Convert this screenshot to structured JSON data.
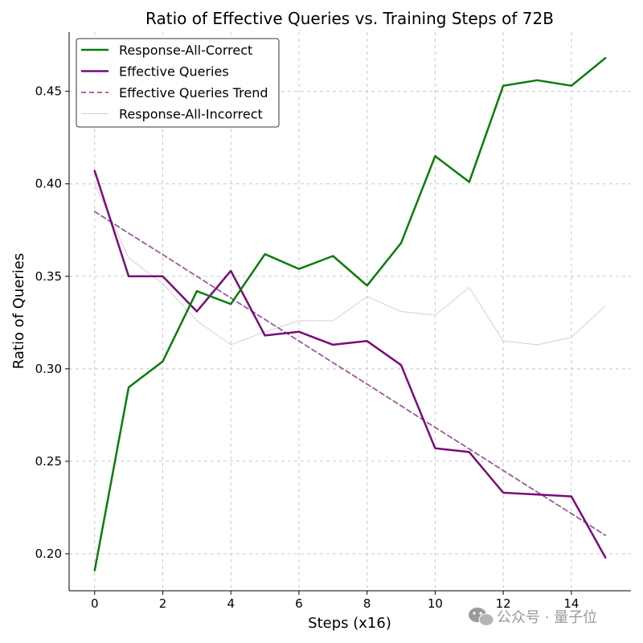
{
  "chart_data": {
    "type": "line",
    "title": "Ratio of Effective Queries vs. Training Steps of 72B",
    "xlabel": "Steps (x16)",
    "ylabel": "Ratio of Queries",
    "xlim": [
      -0.75,
      15.75
    ],
    "ylim": [
      0.18,
      0.482
    ],
    "xticks": [
      0,
      2,
      4,
      6,
      8,
      10,
      12,
      14
    ],
    "yticks": [
      0.2,
      0.25,
      0.3,
      0.35,
      0.4,
      0.45
    ],
    "grid": true,
    "legend_position": "top-left",
    "x": [
      0,
      1,
      2,
      3,
      4,
      5,
      6,
      7,
      8,
      9,
      10,
      11,
      12,
      13,
      14,
      15
    ],
    "series": [
      {
        "name": "Response-All-Correct",
        "color": "#0a7d0a",
        "style": "solid",
        "weight": "thick",
        "values": [
          0.191,
          0.29,
          0.304,
          0.342,
          0.335,
          0.362,
          0.354,
          0.361,
          0.345,
          0.368,
          0.415,
          0.401,
          0.453,
          0.456,
          0.453,
          0.468
        ]
      },
      {
        "name": "Effective Queries",
        "color": "#7a0a7a",
        "style": "solid",
        "weight": "thick",
        "values": [
          0.407,
          0.35,
          0.35,
          0.331,
          0.353,
          0.318,
          0.32,
          0.313,
          0.315,
          0.302,
          0.257,
          0.255,
          0.233,
          0.232,
          0.231,
          0.198
        ]
      },
      {
        "name": "Effective Queries Trend",
        "color": "#9a5a9a",
        "style": "dashed",
        "weight": "medium",
        "values": [
          0.385,
          0.3733,
          0.3617,
          0.35,
          0.3383,
          0.3267,
          0.315,
          0.3033,
          0.2917,
          0.28,
          0.2683,
          0.2567,
          0.245,
          0.2333,
          0.2217,
          0.21
        ]
      },
      {
        "name": "Response-All-Incorrect",
        "color": "#d2d2d2",
        "style": "solid",
        "weight": "thin",
        "values": [
          0.4,
          0.36,
          0.346,
          0.326,
          0.313,
          0.32,
          0.326,
          0.326,
          0.339,
          0.331,
          0.329,
          0.344,
          0.315,
          0.313,
          0.317,
          0.334
        ]
      }
    ]
  },
  "watermark": {
    "text": "公众号 · 量子位",
    "icon": "wechat-icon"
  }
}
